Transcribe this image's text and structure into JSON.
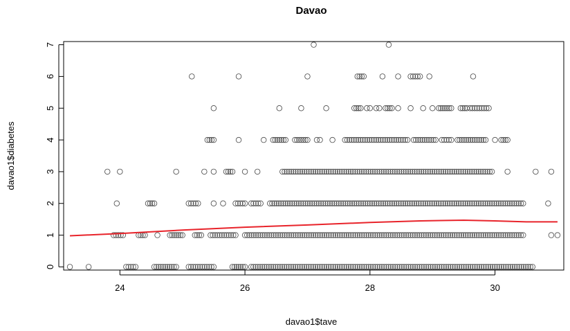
{
  "chart_data": {
    "type": "scatter",
    "title": "Davao",
    "xlabel": "davao1$tave",
    "ylabel": "davao1$diabetes",
    "xlim": [
      23.1,
      31.1
    ],
    "ylim": [
      -0.1,
      7.1
    ],
    "x_ticks": [
      24,
      26,
      28,
      30
    ],
    "y_ticks": [
      0,
      1,
      2,
      3,
      4,
      5,
      6,
      7
    ],
    "grid": false,
    "colors": {
      "points": "#4d4d4d",
      "trend": "#e8232a",
      "frame": "#000000"
    },
    "levels": [
      {
        "y": 0,
        "clusters": [
          [
            23.2
          ],
          [
            23.5
          ],
          [
            24.1,
            24.25
          ],
          [
            24.55,
            24.9
          ],
          [
            25.1,
            25.5
          ],
          [
            25.8,
            26.0
          ],
          [
            26.1,
            30.6
          ]
        ]
      },
      {
        "y": 1,
        "clusters": [
          [
            23.9,
            24.05
          ],
          [
            24.3,
            24.4
          ],
          [
            24.6
          ],
          [
            24.8,
            25.0
          ],
          [
            25.2,
            25.3
          ],
          [
            25.45,
            25.85
          ],
          [
            26.0,
            30.45
          ],
          [
            30.9
          ],
          [
            31.0
          ]
        ]
      },
      {
        "y": 2,
        "clusters": [
          [
            23.95
          ],
          [
            24.45,
            24.55
          ],
          [
            25.1,
            25.25
          ],
          [
            25.5
          ],
          [
            25.65
          ],
          [
            25.85,
            26.0
          ],
          [
            26.1,
            26.25
          ],
          [
            26.4,
            30.45
          ],
          [
            30.85
          ]
        ]
      },
      {
        "y": 3,
        "clusters": [
          [
            23.8
          ],
          [
            24.0
          ],
          [
            24.9
          ],
          [
            25.35
          ],
          [
            25.5
          ],
          [
            25.7,
            25.8
          ],
          [
            26.0
          ],
          [
            26.2
          ],
          [
            26.6,
            29.95
          ],
          [
            30.2
          ],
          [
            30.65
          ],
          [
            30.9
          ]
        ]
      },
      {
        "y": 4,
        "clusters": [
          [
            25.4,
            25.5
          ],
          [
            25.9
          ],
          [
            26.3
          ],
          [
            26.45,
            26.65
          ],
          [
            26.8,
            27.0
          ],
          [
            27.15
          ],
          [
            27.2
          ],
          [
            27.4
          ],
          [
            27.6,
            28.6
          ],
          [
            28.7,
            29.05
          ],
          [
            29.15,
            29.3
          ],
          [
            29.4,
            29.85
          ],
          [
            30.0
          ],
          [
            30.1,
            30.2
          ]
        ]
      },
      {
        "y": 5,
        "clusters": [
          [
            25.5
          ],
          [
            26.55
          ],
          [
            26.9
          ],
          [
            27.3
          ],
          [
            27.75,
            27.85
          ],
          [
            27.95,
            28.0
          ],
          [
            28.1,
            28.15
          ],
          [
            28.25,
            28.35
          ],
          [
            28.45
          ],
          [
            28.65
          ],
          [
            28.85
          ],
          [
            29.0
          ],
          [
            29.1,
            29.3
          ],
          [
            29.45,
            29.55
          ],
          [
            29.6,
            29.9
          ]
        ]
      },
      {
        "y": 6,
        "clusters": [
          [
            25.15
          ],
          [
            25.9
          ],
          [
            27.0
          ],
          [
            27.8,
            27.9
          ],
          [
            28.2
          ],
          [
            28.45
          ],
          [
            28.65,
            28.8
          ],
          [
            28.95
          ],
          [
            29.65
          ]
        ]
      },
      {
        "y": 7,
        "clusters": [
          [
            27.1
          ],
          [
            28.3
          ]
        ]
      }
    ],
    "trend": {
      "x": [
        23.2,
        24.0,
        25.0,
        26.0,
        27.0,
        28.0,
        28.8,
        29.5,
        30.0,
        30.5,
        31.0
      ],
      "y": [
        0.98,
        1.05,
        1.16,
        1.25,
        1.32,
        1.4,
        1.45,
        1.47,
        1.45,
        1.42,
        1.42
      ]
    }
  }
}
